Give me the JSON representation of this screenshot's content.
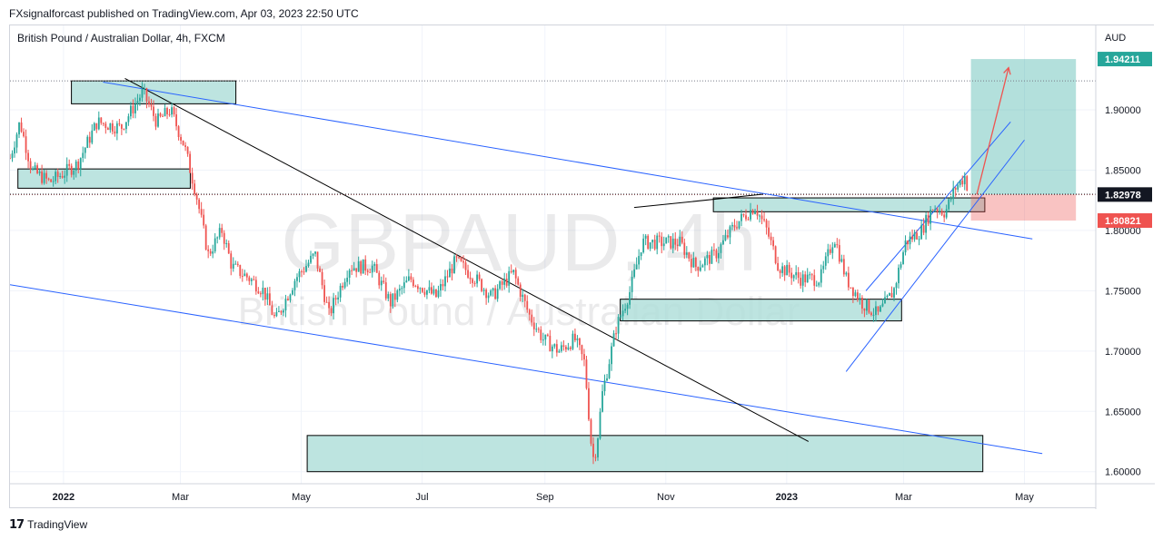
{
  "header": {
    "published_text": "FXsignalforcast published on TradingView.com, Apr 03, 2023 22:50 UTC"
  },
  "footer": {
    "brand": "TradingView",
    "logo_icon": "tradingview-logo-icon"
  },
  "chart_data": {
    "type": "candlestick",
    "title": "British Pound / Australian Dollar, 4h, FXCM",
    "watermark_symbol": "GBPAUD, 4h",
    "watermark_name": "British Pound / Australian Dollar",
    "currency_label": "AUD",
    "ylim": [
      1.59,
      1.97
    ],
    "yticks": [
      "1.60000",
      "1.65000",
      "1.70000",
      "1.75000",
      "1.80000",
      "1.85000",
      "1.90000"
    ],
    "ytick_values": [
      1.6,
      1.65,
      1.7,
      1.75,
      1.8,
      1.85,
      1.9
    ],
    "xticks": [
      "2022",
      "Mar",
      "May",
      "Jul",
      "Sep",
      "Nov",
      "2023",
      "Mar",
      "May"
    ],
    "xtick_dates": [
      "2022-01-01",
      "2022-03-01",
      "2022-05-01",
      "2022-07-01",
      "2022-09-01",
      "2022-11-01",
      "2023-01-01",
      "2023-03-01",
      "2023-05-01"
    ],
    "xlim": [
      "2021-12-05",
      "2023-06-06"
    ],
    "grid": true,
    "price_labels": [
      {
        "value": "1.94211",
        "price": 1.94211,
        "color": "#26a69a"
      },
      {
        "value": "1.82978",
        "price": 1.82978,
        "color": "#131722"
      },
      {
        "value": "1.80821",
        "price": 1.80821,
        "color": "#ef5350"
      }
    ],
    "colors": {
      "up": "#26a69a",
      "down": "#ef5350",
      "trendline": "#2962ff",
      "diagonal": "#000000",
      "zone": "#b2dfdb"
    },
    "price_path": [
      [
        "2021-12-05",
        1.86
      ],
      [
        "2021-12-10",
        1.89
      ],
      [
        "2021-12-16",
        1.85
      ],
      [
        "2021-12-25",
        1.84
      ],
      [
        "2022-01-08",
        1.855
      ],
      [
        "2022-01-18",
        1.89
      ],
      [
        "2022-01-30",
        1.885
      ],
      [
        "2022-02-10",
        1.915
      ],
      [
        "2022-02-17",
        1.89
      ],
      [
        "2022-02-24",
        1.9
      ],
      [
        "2022-03-03",
        1.87
      ],
      [
        "2022-03-09",
        1.83
      ],
      [
        "2022-03-15",
        1.78
      ],
      [
        "2022-03-22",
        1.8
      ],
      [
        "2022-03-27",
        1.77
      ],
      [
        "2022-04-05",
        1.76
      ],
      [
        "2022-04-12",
        1.75
      ],
      [
        "2022-04-18",
        1.725
      ],
      [
        "2022-04-28",
        1.76
      ],
      [
        "2022-05-08",
        1.78
      ],
      [
        "2022-05-15",
        1.73
      ],
      [
        "2022-05-25",
        1.77
      ],
      [
        "2022-06-06",
        1.77
      ],
      [
        "2022-06-15",
        1.74
      ],
      [
        "2022-06-25",
        1.76
      ],
      [
        "2022-07-08",
        1.745
      ],
      [
        "2022-07-18",
        1.775
      ],
      [
        "2022-07-28",
        1.76
      ],
      [
        "2022-08-05",
        1.745
      ],
      [
        "2022-08-16",
        1.765
      ],
      [
        "2022-08-24",
        1.73
      ],
      [
        "2022-08-31",
        1.71
      ],
      [
        "2022-09-08",
        1.7
      ],
      [
        "2022-09-16",
        1.71
      ],
      [
        "2022-09-21",
        1.69
      ],
      [
        "2022-09-25",
        1.61
      ],
      [
        "2022-09-27",
        1.62
      ],
      [
        "2022-09-30",
        1.665
      ],
      [
        "2022-10-07",
        1.72
      ],
      [
        "2022-10-14",
        1.75
      ],
      [
        "2022-10-20",
        1.79
      ],
      [
        "2022-10-30",
        1.79
      ],
      [
        "2022-11-08",
        1.79
      ],
      [
        "2022-11-16",
        1.77
      ],
      [
        "2022-11-26",
        1.78
      ],
      [
        "2022-12-06",
        1.805
      ],
      [
        "2022-12-16",
        1.82
      ],
      [
        "2022-12-22",
        1.8
      ],
      [
        "2022-12-28",
        1.77
      ],
      [
        "2023-01-08",
        1.76
      ],
      [
        "2023-01-18",
        1.76
      ],
      [
        "2023-01-25",
        1.795
      ],
      [
        "2023-01-31",
        1.76
      ],
      [
        "2023-02-08",
        1.74
      ],
      [
        "2023-02-16",
        1.73
      ],
      [
        "2023-02-24",
        1.75
      ],
      [
        "2023-03-02",
        1.79
      ],
      [
        "2023-03-10",
        1.8
      ],
      [
        "2023-03-16",
        1.82
      ],
      [
        "2023-03-22",
        1.815
      ],
      [
        "2023-03-27",
        1.835
      ],
      [
        "2023-04-01",
        1.845
      ],
      [
        "2023-04-03",
        1.83
      ]
    ],
    "zones": [
      {
        "from": "2022-01-05",
        "to": "2022-03-29",
        "low": 1.905,
        "high": 1.924
      },
      {
        "from": "2021-12-09",
        "to": "2022-03-06",
        "low": 1.835,
        "high": 1.851
      },
      {
        "from": "2022-11-25",
        "to": "2023-04-11",
        "low": 1.8155,
        "high": 1.827
      },
      {
        "from": "2022-10-09",
        "to": "2023-02-28",
        "low": 1.725,
        "high": 1.743
      },
      {
        "from": "2022-05-04",
        "to": "2023-04-10",
        "low": 1.6,
        "high": 1.63
      }
    ],
    "position": {
      "entry_from": "2023-04-04",
      "entry_to": "2023-05-27",
      "target": 1.9421,
      "entry": 1.82978,
      "stop": 1.80821,
      "arrow": [
        [
          "2023-04-07",
          1.83
        ],
        [
          "2023-04-23",
          1.935
        ]
      ]
    },
    "lines": [
      {
        "kind": "blue",
        "points": [
          [
            "2022-01-21",
            1.923
          ],
          [
            "2023-05-05",
            1.793
          ]
        ]
      },
      {
        "kind": "blue",
        "points": [
          [
            "2021-12-05",
            1.755
          ],
          [
            "2023-05-10",
            1.615
          ]
        ]
      },
      {
        "kind": "black",
        "points": [
          [
            "2022-02-01",
            1.926
          ],
          [
            "2023-01-12",
            1.625
          ]
        ]
      },
      {
        "kind": "black",
        "points": [
          [
            "2022-10-16",
            1.819
          ],
          [
            "2022-12-20",
            1.83
          ]
        ]
      },
      {
        "kind": "blue",
        "points": [
          [
            "2023-01-31",
            1.683
          ],
          [
            "2023-05-01",
            1.875
          ]
        ]
      },
      {
        "kind": "blue",
        "points": [
          [
            "2023-02-10",
            1.75
          ],
          [
            "2023-04-24",
            1.89
          ]
        ]
      }
    ],
    "level_lines": [
      {
        "price": 1.924,
        "color": "#787b86"
      },
      {
        "price": 1.82978,
        "color": "#ef5350"
      },
      {
        "price": 1.83,
        "color": "#131722"
      }
    ]
  }
}
